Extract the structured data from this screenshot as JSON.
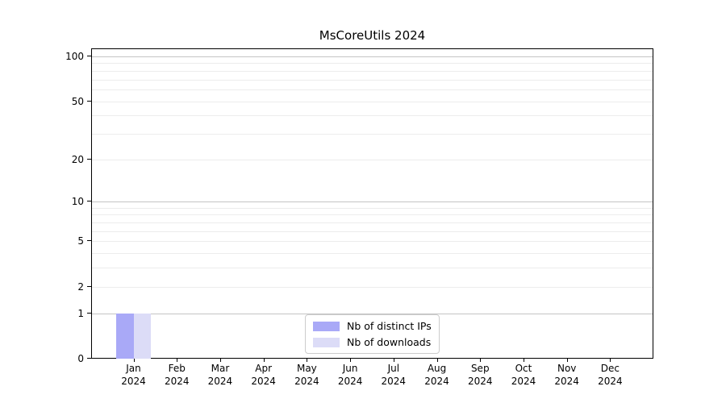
{
  "title": "MsCoreUtils 2024",
  "chart_data": {
    "type": "bar",
    "title": "MsCoreUtils 2024",
    "categories": [
      "Jan",
      "Feb",
      "Mar",
      "Apr",
      "May",
      "Jun",
      "Jul",
      "Aug",
      "Sep",
      "Oct",
      "Nov",
      "Dec"
    ],
    "year": "2024",
    "series": [
      {
        "name": "Nb of distinct IPs",
        "color": "#a9a9f7",
        "values": [
          1,
          0,
          0,
          0,
          0,
          0,
          0,
          0,
          0,
          0,
          0,
          0
        ]
      },
      {
        "name": "Nb of downloads",
        "color": "#dcdcf7",
        "values": [
          1,
          0,
          0,
          0,
          0,
          0,
          0,
          0,
          0,
          0,
          0,
          0
        ]
      }
    ],
    "xlabel": "",
    "ylabel": "",
    "yscale": "log1p",
    "ylim": [
      0,
      113
    ],
    "yticks": [
      0,
      1,
      2,
      5,
      10,
      20,
      50,
      100
    ],
    "gridlines_major": [
      1,
      10,
      100
    ],
    "gridlines_minor": [
      2,
      3,
      4,
      5,
      6,
      7,
      8,
      9,
      20,
      30,
      40,
      50,
      60,
      70,
      80,
      90
    ],
    "grid": "horizontal",
    "legend_position": "bottom-center",
    "colors": {
      "major_grid": "#c4c4c4",
      "minor_grid": "#ececec",
      "axis": "#000000",
      "background": "#ffffff"
    }
  }
}
